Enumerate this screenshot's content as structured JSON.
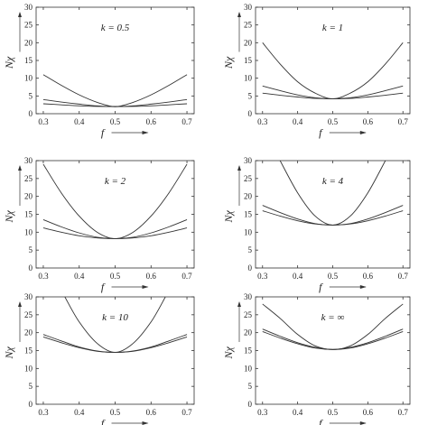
{
  "chart_data": [
    {
      "type": "line",
      "annotation": "k = 0.5",
      "xlabel": "f",
      "ylabel": "Nχ",
      "xlim": [
        0.28,
        0.72
      ],
      "ylim": [
        0,
        30
      ],
      "xticks": [
        "0.3",
        "0.4",
        "0.5",
        "0.6",
        "0.7"
      ],
      "yticks": [
        "0",
        "5",
        "10",
        "15",
        "20",
        "25",
        "30"
      ],
      "series": [
        {
          "x": [
            0.3,
            0.35,
            0.4,
            0.45,
            0.5,
            0.55,
            0.6,
            0.65,
            0.7
          ],
          "y": [
            11,
            8,
            5.3,
            3.2,
            2.0,
            3.2,
            5.3,
            8,
            11
          ]
        },
        {
          "x": [
            0.3,
            0.35,
            0.4,
            0.45,
            0.5,
            0.55,
            0.6,
            0.65,
            0.7
          ],
          "y": [
            4.0,
            3.3,
            2.7,
            2.2,
            2.0,
            2.2,
            2.7,
            3.3,
            4.0
          ]
        },
        {
          "x": [
            0.3,
            0.35,
            0.4,
            0.45,
            0.5,
            0.55,
            0.6,
            0.65,
            0.7
          ],
          "y": [
            2.8,
            2.5,
            2.2,
            2.05,
            2.0,
            2.05,
            2.2,
            2.5,
            2.8
          ]
        }
      ]
    },
    {
      "type": "line",
      "annotation": "k = 1",
      "xlabel": "f",
      "ylabel": "Nχ",
      "xlim": [
        0.28,
        0.72
      ],
      "ylim": [
        0,
        30
      ],
      "xticks": [
        "0.3",
        "0.4",
        "0.5",
        "0.6",
        "0.7"
      ],
      "yticks": [
        "0",
        "5",
        "10",
        "15",
        "20",
        "25",
        "30"
      ],
      "series": [
        {
          "x": [
            0.3,
            0.35,
            0.4,
            0.45,
            0.5,
            0.55,
            0.6,
            0.65,
            0.7
          ],
          "y": [
            20,
            14,
            9,
            5.8,
            4.2,
            5.8,
            9,
            14,
            20
          ]
        },
        {
          "x": [
            0.3,
            0.35,
            0.4,
            0.45,
            0.5,
            0.55,
            0.6,
            0.65,
            0.7
          ],
          "y": [
            7.8,
            6.5,
            5.3,
            4.5,
            4.2,
            4.5,
            5.3,
            6.5,
            7.8
          ]
        },
        {
          "x": [
            0.3,
            0.35,
            0.4,
            0.45,
            0.5,
            0.55,
            0.6,
            0.65,
            0.7
          ],
          "y": [
            5.8,
            5.2,
            4.7,
            4.3,
            4.2,
            4.3,
            4.7,
            5.2,
            5.8
          ]
        }
      ]
    },
    {
      "type": "line",
      "annotation": "k = 2",
      "xlabel": "f",
      "ylabel": "Nχ",
      "xlim": [
        0.28,
        0.72
      ],
      "ylim": [
        0,
        30
      ],
      "xticks": [
        "0.3",
        "0.4",
        "0.5",
        "0.6",
        "0.7"
      ],
      "yticks": [
        "0",
        "5",
        "10",
        "15",
        "20",
        "25",
        "30"
      ],
      "series": [
        {
          "x": [
            0.3,
            0.35,
            0.4,
            0.45,
            0.5,
            0.55,
            0.6,
            0.65,
            0.7
          ],
          "y": [
            29,
            21,
            14.5,
            10,
            8.2,
            10,
            14.5,
            21,
            29
          ]
        },
        {
          "x": [
            0.3,
            0.35,
            0.4,
            0.45,
            0.5,
            0.55,
            0.6,
            0.65,
            0.7
          ],
          "y": [
            13.5,
            11.5,
            9.8,
            8.6,
            8.2,
            8.6,
            9.8,
            11.5,
            13.5
          ]
        },
        {
          "x": [
            0.3,
            0.35,
            0.4,
            0.45,
            0.5,
            0.55,
            0.6,
            0.65,
            0.7
          ],
          "y": [
            11.2,
            10,
            9.0,
            8.4,
            8.2,
            8.4,
            9.0,
            10,
            11.2
          ]
        }
      ]
    },
    {
      "type": "line",
      "annotation": "k = 4",
      "xlabel": "f",
      "ylabel": "Nχ",
      "xlim": [
        0.28,
        0.72
      ],
      "ylim": [
        0,
        30
      ],
      "xticks": [
        "0.3",
        "0.4",
        "0.5",
        "0.6",
        "0.7"
      ],
      "yticks": [
        "0",
        "5",
        "10",
        "15",
        "20",
        "25",
        "30"
      ],
      "series": [
        {
          "x": [
            0.35,
            0.4,
            0.45,
            0.5,
            0.55,
            0.6,
            0.65
          ],
          "y": [
            30,
            21,
            14.5,
            12,
            14.5,
            21,
            30
          ]
        },
        {
          "x": [
            0.3,
            0.35,
            0.4,
            0.45,
            0.5,
            0.55,
            0.6,
            0.65,
            0.7
          ],
          "y": [
            17.5,
            15.5,
            13.7,
            12.4,
            12,
            12.4,
            13.7,
            15.5,
            17.5
          ]
        },
        {
          "x": [
            0.3,
            0.35,
            0.4,
            0.45,
            0.5,
            0.55,
            0.6,
            0.65,
            0.7
          ],
          "y": [
            16,
            14.5,
            13.2,
            12.3,
            12,
            12.3,
            13.2,
            14.5,
            16
          ]
        }
      ]
    },
    {
      "type": "line",
      "annotation": "k = 10",
      "xlabel": "f",
      "ylabel": "Nχ",
      "xlim": [
        0.28,
        0.72
      ],
      "ylim": [
        0,
        30
      ],
      "xticks": [
        "0.3",
        "0.4",
        "0.5",
        "0.6",
        "0.7"
      ],
      "yticks": [
        "0",
        "5",
        "10",
        "15",
        "20",
        "25",
        "30"
      ],
      "series": [
        {
          "x": [
            0.36,
            0.4,
            0.45,
            0.5,
            0.55,
            0.6,
            0.64
          ],
          "y": [
            30,
            23,
            17,
            14.5,
            17,
            23,
            30
          ]
        },
        {
          "x": [
            0.3,
            0.35,
            0.4,
            0.45,
            0.5,
            0.55,
            0.6,
            0.65,
            0.7
          ],
          "y": [
            19.5,
            17.7,
            16,
            14.9,
            14.5,
            14.9,
            16,
            17.7,
            19.5
          ]
        },
        {
          "x": [
            0.3,
            0.35,
            0.4,
            0.45,
            0.5,
            0.55,
            0.6,
            0.65,
            0.7
          ],
          "y": [
            18.8,
            17.2,
            15.8,
            14.8,
            14.5,
            14.8,
            15.8,
            17.2,
            18.8
          ]
        }
      ]
    },
    {
      "type": "line",
      "annotation": "k = ∞",
      "xlabel": "f",
      "ylabel": "Nχ",
      "xlim": [
        0.28,
        0.72
      ],
      "ylim": [
        0,
        30
      ],
      "xticks": [
        "0.3",
        "0.4",
        "0.5",
        "0.6",
        "0.7"
      ],
      "yticks": [
        "0",
        "5",
        "10",
        "15",
        "20",
        "25",
        "30"
      ],
      "series": [
        {
          "x": [
            0.3,
            0.35,
            0.4,
            0.45,
            0.5,
            0.55,
            0.6,
            0.65,
            0.7
          ],
          "y": [
            28,
            24,
            19.5,
            16.3,
            15.3,
            16.3,
            19.5,
            24,
            28
          ]
        },
        {
          "x": [
            0.3,
            0.35,
            0.4,
            0.45,
            0.5,
            0.55,
            0.6,
            0.65,
            0.7
          ],
          "y": [
            21,
            19,
            17.2,
            15.9,
            15.3,
            15.9,
            17.2,
            19,
            21
          ]
        },
        {
          "x": [
            0.3,
            0.35,
            0.4,
            0.45,
            0.5,
            0.55,
            0.6,
            0.65,
            0.7
          ],
          "y": [
            20.3,
            18.5,
            16.9,
            15.7,
            15.3,
            15.7,
            16.9,
            18.5,
            20.3
          ]
        }
      ]
    }
  ],
  "style": {
    "line_color": "#333333",
    "axis_color": "#333333",
    "background": "#ffffff"
  }
}
